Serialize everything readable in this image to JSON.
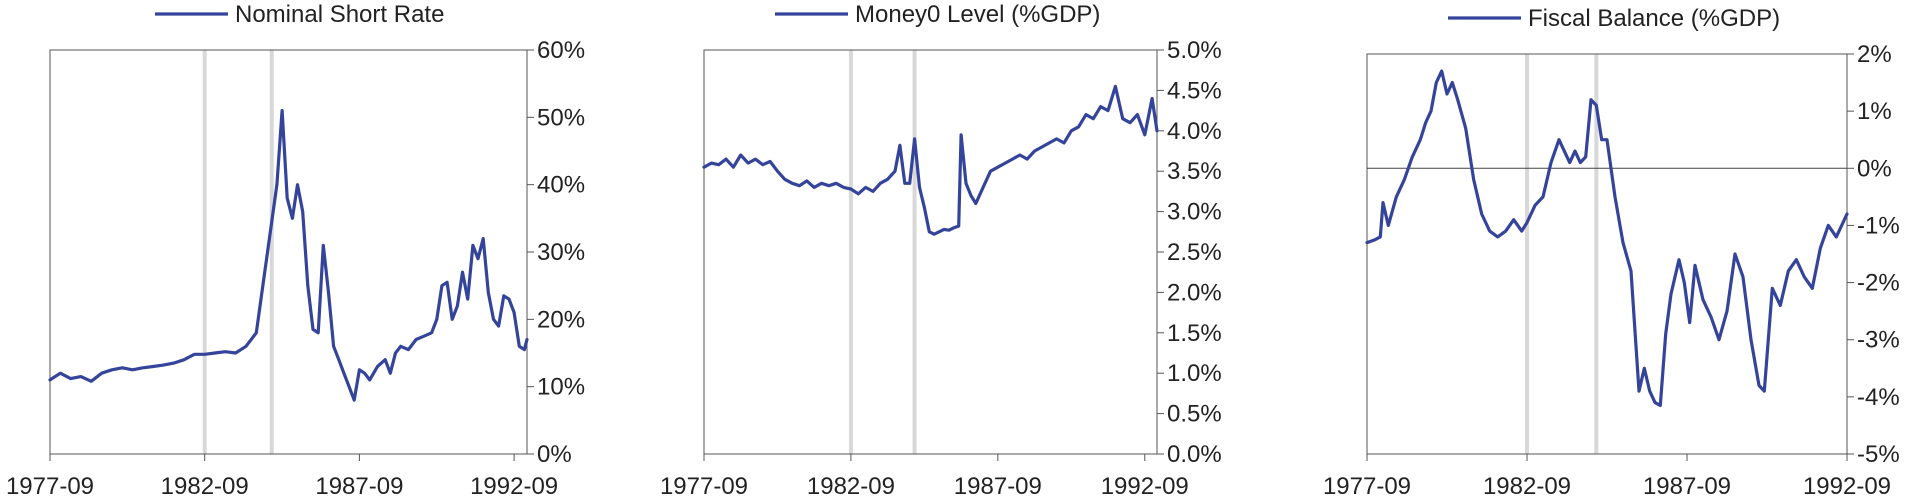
{
  "colors": {
    "series": "#34449a",
    "event_line": "#d8d8d8",
    "axis": "#555555",
    "zero_line": "#444444"
  },
  "chart_data": [
    {
      "type": "line",
      "title": "Nominal Short Rate",
      "series": [
        {
          "name": "Nominal Short Rate",
          "values": [
            [
              "1977-09",
              11
            ],
            [
              "1978-01",
              12
            ],
            [
              "1978-05",
              11.2
            ],
            [
              "1978-09",
              11.5
            ],
            [
              "1979-01",
              10.8
            ],
            [
              "1979-05",
              12
            ],
            [
              "1979-09",
              12.5
            ],
            [
              "1980-01",
              12.8
            ],
            [
              "1980-05",
              12.5
            ],
            [
              "1980-09",
              12.8
            ],
            [
              "1981-01",
              13
            ],
            [
              "1981-05",
              13.2
            ],
            [
              "1981-09",
              13.5
            ],
            [
              "1982-01",
              14
            ],
            [
              "1982-05",
              14.8
            ],
            [
              "1982-09",
              14.8
            ],
            [
              "1983-01",
              15
            ],
            [
              "1983-05",
              15.2
            ],
            [
              "1983-09",
              15
            ],
            [
              "1984-01",
              16
            ],
            [
              "1984-05",
              18
            ],
            [
              "1984-09",
              29
            ],
            [
              "1985-01",
              40
            ],
            [
              "1985-03",
              51
            ],
            [
              "1985-05",
              38
            ],
            [
              "1985-07",
              35
            ],
            [
              "1985-09",
              40
            ],
            [
              "1985-11",
              36
            ],
            [
              "1986-01",
              25
            ],
            [
              "1986-03",
              18.5
            ],
            [
              "1986-05",
              18
            ],
            [
              "1986-07",
              31
            ],
            [
              "1986-09",
              24
            ],
            [
              "1986-11",
              16
            ],
            [
              "1987-01",
              14
            ],
            [
              "1987-03",
              12
            ],
            [
              "1987-05",
              10
            ],
            [
              "1987-07",
              8
            ],
            [
              "1987-09",
              12.5
            ],
            [
              "1987-11",
              12
            ],
            [
              "1988-01",
              11
            ],
            [
              "1988-04",
              13
            ],
            [
              "1988-07",
              14
            ],
            [
              "1988-09",
              12
            ],
            [
              "1988-11",
              15
            ],
            [
              "1989-01",
              16
            ],
            [
              "1989-04",
              15.5
            ],
            [
              "1989-07",
              17
            ],
            [
              "1989-10",
              17.5
            ],
            [
              "1990-01",
              18
            ],
            [
              "1990-03",
              20
            ],
            [
              "1990-05",
              25
            ],
            [
              "1990-07",
              25.5
            ],
            [
              "1990-09",
              20
            ],
            [
              "1990-11",
              22
            ],
            [
              "1991-01",
              27
            ],
            [
              "1991-03",
              23
            ],
            [
              "1991-05",
              31
            ],
            [
              "1991-07",
              29
            ],
            [
              "1991-09",
              32
            ],
            [
              "1991-11",
              24
            ],
            [
              "1992-01",
              20
            ],
            [
              "1992-03",
              19
            ],
            [
              "1992-05",
              23.5
            ],
            [
              "1992-07",
              23
            ],
            [
              "1992-09",
              21
            ],
            [
              "1992-11",
              16
            ],
            [
              "1993-01",
              15.5
            ],
            [
              "1993-02",
              17
            ]
          ]
        }
      ],
      "y_ticks": [
        0,
        10,
        20,
        30,
        40,
        50,
        60
      ],
      "y_tick_labels": [
        "0%",
        "10%",
        "20%",
        "30%",
        "40%",
        "50%",
        "60%"
      ],
      "ylim": [
        0,
        60
      ],
      "x_ticks": [
        "1977-09",
        "1982-09",
        "1987-09",
        "1992-09"
      ],
      "xlim": [
        "1977-09",
        "1993-02"
      ],
      "event_lines": [
        "1982-09",
        "1984-11"
      ],
      "zero_line": false,
      "legend_position": "top-center"
    },
    {
      "type": "line",
      "title": "Money0 Level (%GDP)",
      "series": [
        {
          "name": "Money0 Level (%GDP)",
          "values": [
            [
              "1977-09",
              3.55
            ],
            [
              "1977-12",
              3.6
            ],
            [
              "1978-03",
              3.58
            ],
            [
              "1978-06",
              3.65
            ],
            [
              "1978-09",
              3.55
            ],
            [
              "1978-12",
              3.7
            ],
            [
              "1979-03",
              3.6
            ],
            [
              "1979-06",
              3.65
            ],
            [
              "1979-09",
              3.58
            ],
            [
              "1979-12",
              3.62
            ],
            [
              "1980-03",
              3.5
            ],
            [
              "1980-06",
              3.4
            ],
            [
              "1980-09",
              3.35
            ],
            [
              "1980-12",
              3.32
            ],
            [
              "1981-03",
              3.38
            ],
            [
              "1981-06",
              3.3
            ],
            [
              "1981-09",
              3.35
            ],
            [
              "1981-12",
              3.32
            ],
            [
              "1982-03",
              3.35
            ],
            [
              "1982-06",
              3.3
            ],
            [
              "1982-09",
              3.28
            ],
            [
              "1982-12",
              3.22
            ],
            [
              "1983-03",
              3.3
            ],
            [
              "1983-06",
              3.25
            ],
            [
              "1983-09",
              3.35
            ],
            [
              "1983-12",
              3.4
            ],
            [
              "1984-03",
              3.5
            ],
            [
              "1984-05",
              3.82
            ],
            [
              "1984-07",
              3.35
            ],
            [
              "1984-09",
              3.35
            ],
            [
              "1984-11",
              3.9
            ],
            [
              "1985-01",
              3.3
            ],
            [
              "1985-03",
              3.05
            ],
            [
              "1985-05",
              2.75
            ],
            [
              "1985-07",
              2.72
            ],
            [
              "1985-09",
              2.75
            ],
            [
              "1985-11",
              2.78
            ],
            [
              "1986-01",
              2.77
            ],
            [
              "1986-03",
              2.8
            ],
            [
              "1986-05",
              2.82
            ],
            [
              "1986-06",
              3.95
            ],
            [
              "1986-08",
              3.35
            ],
            [
              "1986-10",
              3.2
            ],
            [
              "1986-12",
              3.1
            ],
            [
              "1987-03",
              3.3
            ],
            [
              "1987-06",
              3.5
            ],
            [
              "1987-09",
              3.55
            ],
            [
              "1987-12",
              3.6
            ],
            [
              "1988-03",
              3.65
            ],
            [
              "1988-06",
              3.7
            ],
            [
              "1988-09",
              3.65
            ],
            [
              "1988-12",
              3.75
            ],
            [
              "1989-03",
              3.8
            ],
            [
              "1989-06",
              3.85
            ],
            [
              "1989-09",
              3.9
            ],
            [
              "1989-12",
              3.85
            ],
            [
              "1990-03",
              4.0
            ],
            [
              "1990-06",
              4.05
            ],
            [
              "1990-09",
              4.2
            ],
            [
              "1990-12",
              4.15
            ],
            [
              "1991-03",
              4.3
            ],
            [
              "1991-06",
              4.25
            ],
            [
              "1991-09",
              4.55
            ],
            [
              "1991-12",
              4.15
            ],
            [
              "1992-03",
              4.1
            ],
            [
              "1992-06",
              4.2
            ],
            [
              "1992-09",
              3.95
            ],
            [
              "1992-12",
              4.4
            ],
            [
              "1993-02",
              4.0
            ]
          ]
        }
      ],
      "y_ticks": [
        0,
        0.5,
        1.0,
        1.5,
        2.0,
        2.5,
        3.0,
        3.5,
        4.0,
        4.5,
        5.0
      ],
      "y_tick_labels": [
        "0.0%",
        "0.5%",
        "1.0%",
        "1.5%",
        "2.0%",
        "2.5%",
        "3.0%",
        "3.5%",
        "4.0%",
        "4.5%",
        "5.0%"
      ],
      "ylim": [
        0,
        5
      ],
      "x_ticks": [
        "1977-09",
        "1982-09",
        "1987-09",
        "1992-09"
      ],
      "xlim": [
        "1977-09",
        "1993-02"
      ],
      "event_lines": [
        "1982-09",
        "1984-11"
      ],
      "zero_line": false,
      "legend_position": "top-center"
    },
    {
      "type": "line",
      "title": "Fiscal Balance (%GDP)",
      "series": [
        {
          "name": "Fiscal Balance (%GDP)",
          "values": [
            [
              "1977-09",
              -1.3
            ],
            [
              "1977-12",
              -1.25
            ],
            [
              "1978-02",
              -1.2
            ],
            [
              "1978-03",
              -0.6
            ],
            [
              "1978-05",
              -1.0
            ],
            [
              "1978-08",
              -0.5
            ],
            [
              "1978-11",
              -0.2
            ],
            [
              "1979-02",
              0.2
            ],
            [
              "1979-05",
              0.5
            ],
            [
              "1979-07",
              0.8
            ],
            [
              "1979-09",
              1.0
            ],
            [
              "1979-11",
              1.5
            ],
            [
              "1980-01",
              1.7
            ],
            [
              "1980-03",
              1.3
            ],
            [
              "1980-05",
              1.5
            ],
            [
              "1980-07",
              1.2
            ],
            [
              "1980-10",
              0.7
            ],
            [
              "1981-01",
              -0.2
            ],
            [
              "1981-04",
              -0.8
            ],
            [
              "1981-07",
              -1.1
            ],
            [
              "1981-10",
              -1.2
            ],
            [
              "1982-01",
              -1.1
            ],
            [
              "1982-04",
              -0.9
            ],
            [
              "1982-07",
              -1.1
            ],
            [
              "1982-09",
              -0.95
            ],
            [
              "1982-12",
              -0.65
            ],
            [
              "1983-03",
              -0.5
            ],
            [
              "1983-06",
              0.1
            ],
            [
              "1983-09",
              0.5
            ],
            [
              "1983-11",
              0.3
            ],
            [
              "1984-01",
              0.1
            ],
            [
              "1984-03",
              0.3
            ],
            [
              "1984-05",
              0.1
            ],
            [
              "1984-07",
              0.2
            ],
            [
              "1984-09",
              1.2
            ],
            [
              "1984-11",
              1.1
            ],
            [
              "1985-01",
              0.5
            ],
            [
              "1985-03",
              0.5
            ],
            [
              "1985-06",
              -0.5
            ],
            [
              "1985-09",
              -1.3
            ],
            [
              "1985-12",
              -1.8
            ],
            [
              "1986-03",
              -3.9
            ],
            [
              "1986-05",
              -3.5
            ],
            [
              "1986-07",
              -3.9
            ],
            [
              "1986-09",
              -4.1
            ],
            [
              "1986-11",
              -4.15
            ],
            [
              "1987-01",
              -2.9
            ],
            [
              "1987-03",
              -2.2
            ],
            [
              "1987-06",
              -1.6
            ],
            [
              "1987-08",
              -2.0
            ],
            [
              "1987-10",
              -2.7
            ],
            [
              "1987-12",
              -1.7
            ],
            [
              "1988-03",
              -2.3
            ],
            [
              "1988-06",
              -2.6
            ],
            [
              "1988-09",
              -3.0
            ],
            [
              "1988-12",
              -2.5
            ],
            [
              "1989-03",
              -1.5
            ],
            [
              "1989-06",
              -1.9
            ],
            [
              "1989-09",
              -3.0
            ],
            [
              "1989-12",
              -3.8
            ],
            [
              "1990-02",
              -3.9
            ],
            [
              "1990-05",
              -2.1
            ],
            [
              "1990-08",
              -2.4
            ],
            [
              "1990-11",
              -1.8
            ],
            [
              "1991-02",
              -1.6
            ],
            [
              "1991-05",
              -1.9
            ],
            [
              "1991-08",
              -2.1
            ],
            [
              "1991-11",
              -1.4
            ],
            [
              "1992-02",
              -1.0
            ],
            [
              "1992-05",
              -1.2
            ],
            [
              "1992-09",
              -0.8
            ]
          ]
        }
      ],
      "y_ticks": [
        -5,
        -4,
        -3,
        -2,
        -1,
        0,
        1,
        2
      ],
      "y_tick_labels": [
        "-5%",
        "-4%",
        "-3%",
        "-2%",
        "-1%",
        "0%",
        "1%",
        "2%"
      ],
      "ylim": [
        -5,
        2
      ],
      "x_ticks": [
        "1977-09",
        "1982-09",
        "1987-09",
        "1992-09"
      ],
      "xlim": [
        "1977-09",
        "1992-09"
      ],
      "event_lines": [
        "1982-09",
        "1984-11"
      ],
      "zero_line": true,
      "legend_position": "top-center"
    }
  ]
}
